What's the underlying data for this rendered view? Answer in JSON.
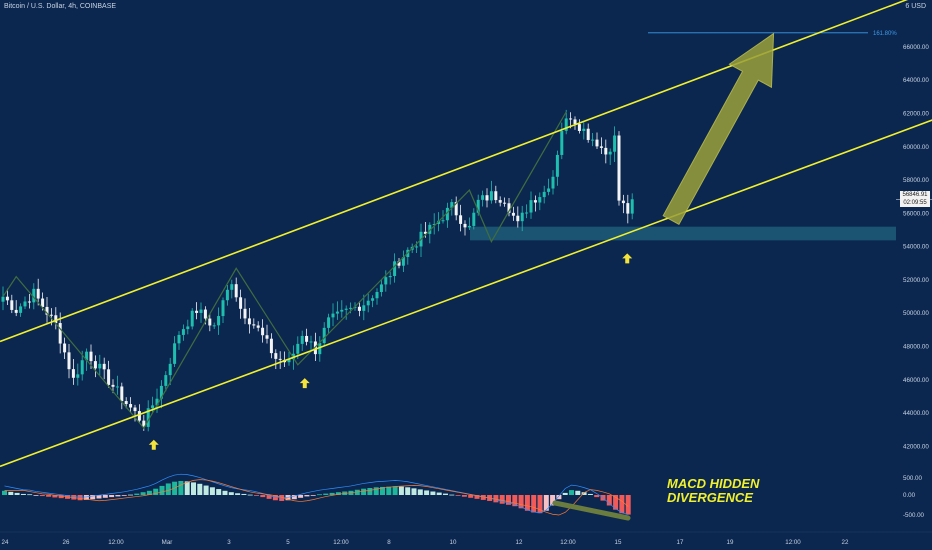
{
  "header": {
    "title": "Bitcoin / U.S. Dollar, 4h, COINBASE",
    "currency": "USD",
    "currency_prefix": "6"
  },
  "price_tags": {
    "last_price": "56846.91",
    "countdown": "02:09:55"
  },
  "fib_label": "161.80%",
  "annotation": {
    "line1": "MACD HIDDEN",
    "line2": "DIVERGENCE"
  },
  "colors": {
    "background": "#0b2750",
    "channel": "#f0f02c",
    "bull_candle": "#1fbfb0",
    "bear_candle": "#f4f4f4",
    "zigzag": "#3f6e3e",
    "support_zone": "#1f5d78",
    "fib_line": "#3d9be8",
    "arrow": "#9aa03a",
    "macd_pos": "#1fb79c",
    "macd_pos_light": "#bfe9e1",
    "macd_neg": "#f05a5a",
    "macd_neg_light": "#f6c1c6",
    "macd_line": "#2f8fff",
    "signal_line": "#ff7a2f"
  },
  "chart_data": {
    "type": "candlestick",
    "symbol": "Bitcoin / U.S. Dollar",
    "timeframe": "4h",
    "exchange": "COINBASE",
    "y_ticks": [
      "66000.00",
      "64000.00",
      "62000.00",
      "60000.00",
      "58000.00",
      "56000.00",
      "54000.00",
      "52000.00",
      "50000.00",
      "48000.00",
      "46000.00",
      "44000.00",
      "42000.00"
    ],
    "x_ticks": [
      "24",
      "26",
      "12:00",
      "Mar",
      "3",
      "5",
      "12:00",
      "8",
      "10",
      "12",
      "12:00",
      "15",
      "17",
      "19",
      "12:00",
      "22"
    ],
    "macd_ticks": [
      "500.00",
      "0.00",
      "-500.00"
    ],
    "ylim": [
      41000,
      67500
    ],
    "close_anchors": [
      [
        0,
        51000
      ],
      [
        3,
        50200
      ],
      [
        7,
        51200
      ],
      [
        12,
        49300
      ],
      [
        16,
        46000
      ],
      [
        19,
        47700
      ],
      [
        23,
        46300
      ],
      [
        28,
        44600
      ],
      [
        32,
        43400
      ],
      [
        36,
        45600
      ],
      [
        40,
        48800
      ],
      [
        44,
        50200
      ],
      [
        48,
        49200
      ],
      [
        52,
        52000
      ],
      [
        54,
        50300
      ],
      [
        58,
        49000
      ],
      [
        62,
        47300
      ],
      [
        65,
        47000
      ],
      [
        68,
        48800
      ],
      [
        71,
        47800
      ],
      [
        74,
        49500
      ],
      [
        78,
        50100
      ],
      [
        82,
        50600
      ],
      [
        86,
        51600
      ],
      [
        90,
        53200
      ],
      [
        94,
        54300
      ],
      [
        98,
        55300
      ],
      [
        102,
        56400
      ],
      [
        104,
        55700
      ],
      [
        106,
        55100
      ],
      [
        108,
        56700
      ],
      [
        111,
        57100
      ],
      [
        114,
        56900
      ],
      [
        117,
        55300
      ],
      [
        120,
        56800
      ],
      [
        123,
        57300
      ],
      [
        125,
        58300
      ],
      [
        127,
        61100
      ],
      [
        129,
        61900
      ],
      [
        131,
        61300
      ],
      [
        133,
        60700
      ],
      [
        135,
        60300
      ],
      [
        137,
        59600
      ],
      [
        139,
        60500
      ],
      [
        140,
        56800
      ],
      [
        142,
        56100
      ],
      [
        143,
        56846.91
      ]
    ],
    "channel_upper": [
      [
        0,
        48300
      ],
      [
        1,
        68600
      ]
    ],
    "channel_lower": [
      [
        0,
        40800
      ],
      [
        1,
        60800
      ]
    ],
    "support_zone": [
      54380,
      55200
    ],
    "fib_161_8": 66850,
    "zigzag": [
      [
        0,
        51000
      ],
      [
        3,
        52200
      ],
      [
        32,
        43100
      ],
      [
        53,
        52700
      ],
      [
        67,
        46900
      ],
      [
        106,
        57400
      ],
      [
        111,
        54300
      ],
      [
        128,
        62100
      ]
    ],
    "arrow": {
      "from": [
        0.72,
        55600
      ],
      "to": [
        0.83,
        66800
      ]
    },
    "signal_arrows": [
      [
        0.165,
        42400
      ],
      [
        0.327,
        46100
      ],
      [
        0.673,
        53600
      ]
    ],
    "macd_histogram": [
      120,
      90,
      60,
      30,
      20,
      -10,
      -30,
      -50,
      -70,
      -90,
      -110,
      -130,
      -150,
      -140,
      -120,
      -100,
      -80,
      -60,
      -40,
      -20,
      10,
      40,
      80,
      120,
      180,
      260,
      330,
      380,
      400,
      390,
      360,
      320,
      270,
      220,
      170,
      120,
      80,
      50,
      30,
      10,
      -20,
      -60,
      -110,
      -150,
      -170,
      -150,
      -120,
      -80,
      -40,
      -10,
      20,
      40,
      60,
      80,
      100,
      120,
      150,
      180,
      200,
      220,
      230,
      240,
      250,
      240,
      220,
      190,
      160,
      130,
      100,
      70,
      40,
      10,
      -20,
      -50,
      -80,
      -110,
      -140,
      -170,
      -210,
      -250,
      -280,
      -320,
      -380,
      -450,
      -500,
      -520,
      -450,
      -300,
      -120,
      60,
      140,
      120,
      80,
      30,
      -60,
      -160,
      -300,
      -420,
      -520,
      -560
    ]
  }
}
